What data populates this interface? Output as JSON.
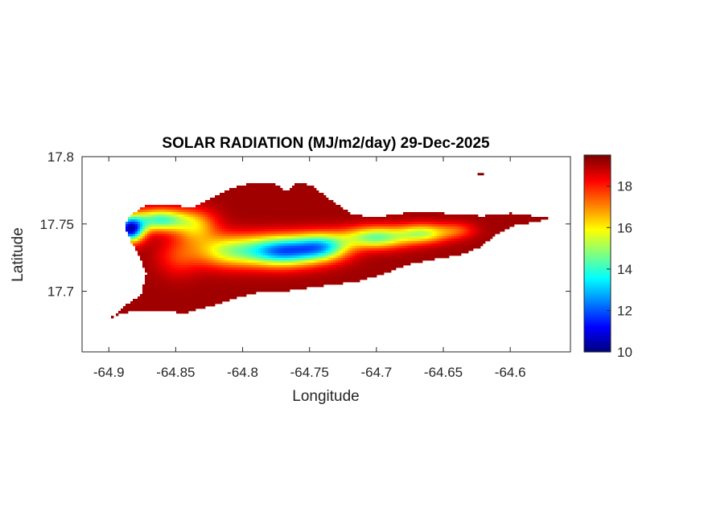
{
  "chart_data": {
    "type": "heatmap",
    "title": "SOLAR RADIATION (MJ/m2/day) 29-Dec-2025",
    "xlabel": "Longitude",
    "ylabel": "Latitude",
    "xlim": [
      -64.92,
      -64.555
    ],
    "ylim": [
      17.655,
      17.8
    ],
    "xticks": [
      -64.9,
      -64.85,
      -64.8,
      -64.75,
      -64.7,
      -64.65,
      -64.6
    ],
    "xtick_labels": [
      "-64.9",
      "-64.85",
      "-64.8",
      "-64.75",
      "-64.7",
      "-64.65",
      "-64.6"
    ],
    "yticks": [
      17.7,
      17.75,
      17.8
    ],
    "ytick_labels": [
      "17.7",
      "17.75",
      "17.8"
    ],
    "colorbar": {
      "colormap": "jet",
      "range": [
        10,
        19.5
      ],
      "ticks": [
        10,
        12,
        14,
        16,
        18
      ],
      "tick_labels": [
        "10",
        "12",
        "14",
        "16",
        "18"
      ]
    },
    "island_outline": [
      [
        -64.9,
        17.679
      ],
      [
        -64.887,
        17.69
      ],
      [
        -64.876,
        17.697
      ],
      [
        -64.872,
        17.713
      ],
      [
        -64.878,
        17.728
      ],
      [
        -64.884,
        17.738
      ],
      [
        -64.888,
        17.748
      ],
      [
        -64.884,
        17.757
      ],
      [
        -64.872,
        17.764
      ],
      [
        -64.856,
        17.765
      ],
      [
        -64.838,
        17.762
      ],
      [
        -64.822,
        17.77
      ],
      [
        -64.807,
        17.777
      ],
      [
        -64.79,
        17.781
      ],
      [
        -64.776,
        17.78
      ],
      [
        -64.768,
        17.774
      ],
      [
        -64.76,
        17.78
      ],
      [
        -64.748,
        17.779
      ],
      [
        -64.74,
        17.772
      ],
      [
        -64.73,
        17.765
      ],
      [
        -64.718,
        17.757
      ],
      [
        -64.7,
        17.755
      ],
      [
        -64.68,
        17.758
      ],
      [
        -64.66,
        17.759
      ],
      [
        -64.641,
        17.757
      ],
      [
        -64.621,
        17.756
      ],
      [
        -64.6,
        17.758
      ],
      [
        -64.583,
        17.756
      ],
      [
        -64.57,
        17.755
      ],
      [
        -64.58,
        17.752
      ],
      [
        -64.597,
        17.749
      ],
      [
        -64.61,
        17.743
      ],
      [
        -64.622,
        17.733
      ],
      [
        -64.638,
        17.727
      ],
      [
        -64.657,
        17.724
      ],
      [
        -64.676,
        17.72
      ],
      [
        -64.695,
        17.713
      ],
      [
        -64.715,
        17.707
      ],
      [
        -64.735,
        17.705
      ],
      [
        -64.755,
        17.702
      ],
      [
        -64.77,
        17.7
      ],
      [
        -64.784,
        17.7
      ],
      [
        -64.795,
        17.698
      ],
      [
        -64.808,
        17.694
      ],
      [
        -64.82,
        17.69
      ],
      [
        -64.832,
        17.687
      ],
      [
        -64.843,
        17.684
      ],
      [
        -64.856,
        17.685
      ],
      [
        -64.868,
        17.686
      ],
      [
        -64.88,
        17.686
      ],
      [
        -64.892,
        17.683
      ]
    ],
    "islet": [
      -64.622,
      17.787
    ],
    "field": {
      "base": 19.2,
      "features": [
        {
          "lon": -64.884,
          "lat": 17.746,
          "dlon": 0.01,
          "dlat": 0.009,
          "amp": -8.2
        },
        {
          "lon": -64.862,
          "lat": 17.753,
          "dlon": 0.02,
          "dlat": 0.008,
          "amp": -5.0
        },
        {
          "lon": -64.835,
          "lat": 17.748,
          "dlon": 0.016,
          "dlat": 0.012,
          "amp": -2.5
        },
        {
          "lon": -64.81,
          "lat": 17.73,
          "dlon": 0.026,
          "dlat": 0.012,
          "amp": -3.6
        },
        {
          "lon": -64.77,
          "lat": 17.73,
          "dlon": 0.026,
          "dlat": 0.011,
          "amp": -6.6
        },
        {
          "lon": -64.74,
          "lat": 17.733,
          "dlon": 0.02,
          "dlat": 0.01,
          "amp": -5.0
        },
        {
          "lon": -64.7,
          "lat": 17.74,
          "dlon": 0.024,
          "dlat": 0.008,
          "amp": -4.6
        },
        {
          "lon": -64.665,
          "lat": 17.743,
          "dlon": 0.018,
          "dlat": 0.007,
          "amp": -3.5
        },
        {
          "lon": -64.64,
          "lat": 17.745,
          "dlon": 0.014,
          "dlat": 0.006,
          "amp": -1.5
        },
        {
          "lon": -64.848,
          "lat": 17.725,
          "dlon": 0.016,
          "dlat": 0.014,
          "amp": -1.2
        }
      ]
    }
  }
}
